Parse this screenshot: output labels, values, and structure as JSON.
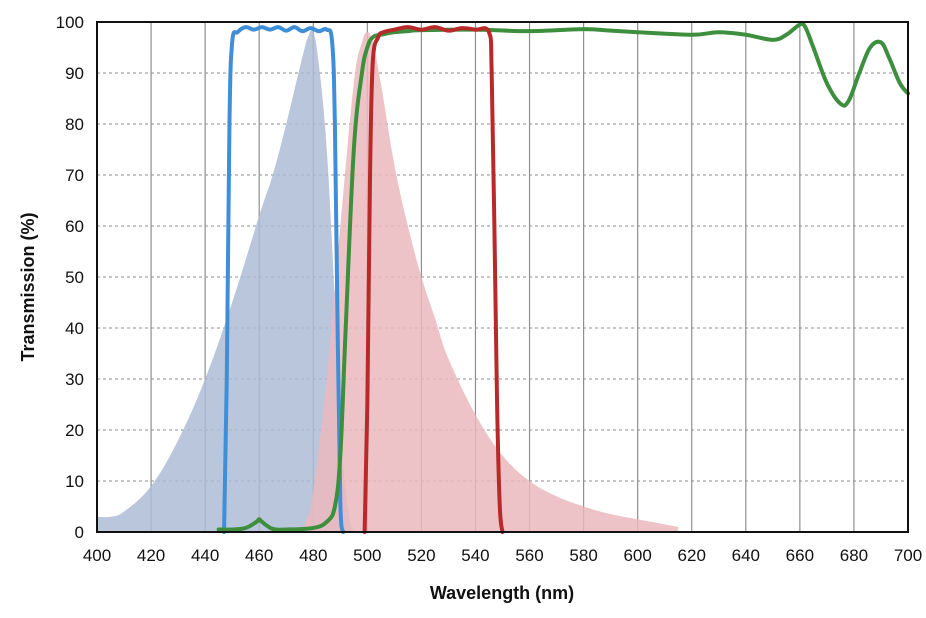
{
  "chart_data": {
    "type": "line",
    "xlabel": "Wavelength (nm)",
    "ylabel": "Transmission (%)",
    "xlim": [
      400,
      700
    ],
    "ylim": [
      0,
      100
    ],
    "x_ticks": [
      400,
      420,
      440,
      460,
      480,
      500,
      520,
      540,
      560,
      580,
      600,
      620,
      640,
      660,
      680,
      700
    ],
    "y_ticks": [
      0,
      10,
      20,
      30,
      40,
      50,
      60,
      70,
      80,
      90,
      100
    ],
    "grid": {
      "vertical": "solid",
      "horizontal": "dashed"
    },
    "colors": {
      "grid": "#8f8f8f",
      "axis": "#111111",
      "blue_area": "#adbcd6",
      "red_area": "#ebb9bd",
      "blue_line": "#3f8ed8",
      "green_line": "#3d8f3d",
      "red_line": "#b82a2a"
    },
    "series": [
      {
        "style": "area",
        "color_key": "blue_area",
        "x": [
          400,
          405,
          410,
          420,
          430,
          440,
          450,
          460,
          465,
          470,
          475,
          478,
          480,
          482,
          485,
          488,
          490,
          493,
          495
        ],
        "y": [
          3,
          3,
          4,
          9,
          18,
          30,
          45,
          62,
          70,
          80,
          91,
          97,
          98,
          92,
          75,
          45,
          20,
          4,
          0
        ]
      },
      {
        "style": "area",
        "color_key": "red_area",
        "x": [
          475,
          478,
          480,
          485,
          490,
          495,
          498,
          500,
          502,
          505,
          510,
          515,
          520,
          525,
          530,
          540,
          550,
          560,
          570,
          580,
          590,
          600,
          610,
          615
        ],
        "y": [
          0,
          3,
          8,
          30,
          60,
          88,
          96,
          98,
          96,
          88,
          72,
          60,
          50,
          42,
          34,
          23,
          15,
          10,
          7,
          5,
          3.5,
          2.5,
          1.5,
          1
        ]
      },
      {
        "style": "line",
        "color_key": "blue_line",
        "x": [
          447,
          448,
          449,
          450,
          452,
          455,
          458,
          461,
          464,
          467,
          470,
          473,
          476,
          479,
          482,
          485,
          487,
          488,
          489,
          490,
          491
        ],
        "y": [
          0,
          30,
          80,
          96,
          98,
          99,
          98.5,
          99,
          98.5,
          99,
          98.3,
          99,
          98.2,
          98.8,
          98.2,
          98.5,
          96,
          80,
          40,
          6,
          0
        ]
      },
      {
        "style": "line",
        "color_key": "green_line",
        "x": [
          445,
          450,
          455,
          459,
          460,
          461,
          465,
          470,
          480,
          485,
          488,
          490,
          492,
          495,
          498,
          500,
          502,
          505,
          510,
          515,
          520,
          540,
          560,
          580,
          590,
          600,
          620,
          630,
          640,
          650,
          655,
          660,
          662,
          665,
          670,
          675,
          678,
          682,
          686,
          690,
          693,
          697,
          700
        ],
        "y": [
          0.5,
          0.5,
          0.8,
          2,
          2.5,
          2,
          0.6,
          0.5,
          0.8,
          2,
          5,
          15,
          40,
          75,
          90,
          95,
          97,
          97.5,
          98,
          98.2,
          98.4,
          98.5,
          98.2,
          98.6,
          98.3,
          98,
          97.5,
          98,
          97.5,
          96.5,
          97.5,
          99.5,
          99,
          95,
          88,
          84,
          84.5,
          90,
          95,
          96,
          93,
          88,
          86
        ]
      },
      {
        "style": "line",
        "color_key": "red_line",
        "x": [
          499,
          500,
          501,
          502,
          504,
          506,
          510,
          515,
          520,
          525,
          530,
          535,
          540,
          545,
          546,
          547,
          548,
          549,
          550
        ],
        "y": [
          0,
          25,
          70,
          92,
          97,
          98,
          98.5,
          99,
          98.5,
          99,
          98.3,
          98.8,
          98.5,
          98,
          90,
          60,
          25,
          5,
          0
        ]
      }
    ]
  }
}
